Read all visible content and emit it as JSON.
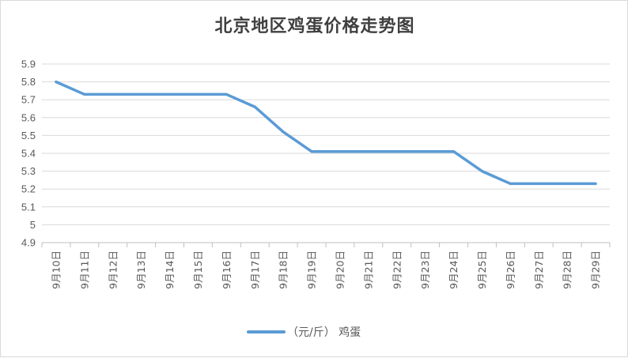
{
  "chart_data": {
    "type": "line",
    "title": "北京地区鸡蛋价格走势图",
    "xlabel": "",
    "ylabel": "",
    "categories": [
      "9月10日",
      "9月11日",
      "9月12日",
      "9月13日",
      "9月14日",
      "9月15日",
      "9月16日",
      "9月17日",
      "9月18日",
      "9月19日",
      "9月20日",
      "9月21日",
      "9月22日",
      "9月23日",
      "9月24日",
      "9月25日",
      "9月26日",
      "9月27日",
      "9月28日",
      "9月29日"
    ],
    "series": [
      {
        "name": "（元/斤） 鸡蛋",
        "values": [
          5.8,
          5.73,
          5.73,
          5.73,
          5.73,
          5.73,
          5.73,
          5.66,
          5.52,
          5.41,
          5.41,
          5.41,
          5.41,
          5.41,
          5.41,
          5.3,
          5.23,
          5.23,
          5.23,
          5.23
        ]
      }
    ],
    "ylim": [
      4.9,
      5.9
    ],
    "yticks": [
      "4.9",
      "5",
      "5.1",
      "5.2",
      "5.3",
      "5.4",
      "5.5",
      "5.6",
      "5.7",
      "5.8",
      "5.9"
    ],
    "grid": true,
    "legend": "bottom",
    "series_color": "#5b9bd5"
  }
}
